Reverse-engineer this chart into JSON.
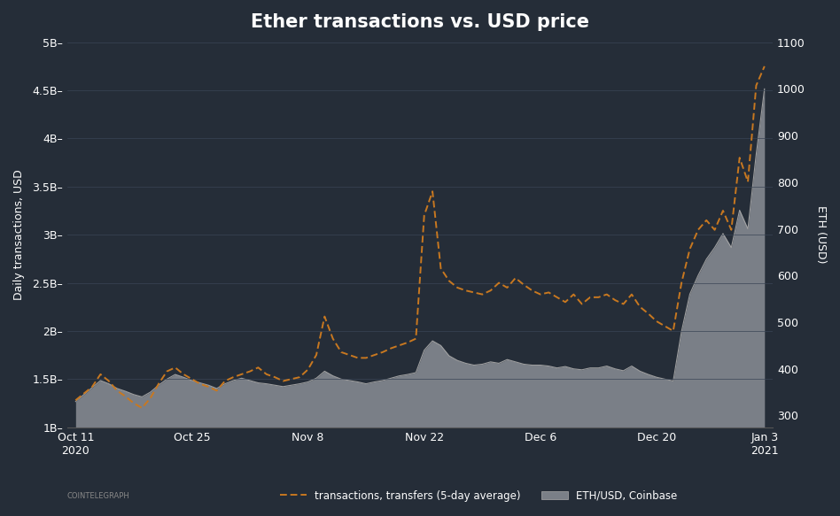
{
  "title": "Ether transactions vs. USD price",
  "bg_color": "#252d38",
  "plot_bg_color": "#252d38",
  "text_color": "#ffffff",
  "ylabel_left": "Daily transactions, USD",
  "ylabel_right": "ETH (USD)",
  "orange_color": "#c87820",
  "gray_fill_color": "#7a7f87",
  "gray_line_color": "#aaaaaa",
  "ylim_left": [
    1000000000.0,
    5000000000.0
  ],
  "ylim_right": [
    275,
    1100
  ],
  "transactions": [
    1280000000.0,
    1350000000.0,
    1420000000.0,
    1550000000.0,
    1480000000.0,
    1380000000.0,
    1320000000.0,
    1250000000.0,
    1200000000.0,
    1300000000.0,
    1450000000.0,
    1580000000.0,
    1620000000.0,
    1550000000.0,
    1500000000.0,
    1450000000.0,
    1420000000.0,
    1380000000.0,
    1480000000.0,
    1520000000.0,
    1550000000.0,
    1580000000.0,
    1620000000.0,
    1550000000.0,
    1520000000.0,
    1480000000.0,
    1500000000.0,
    1520000000.0,
    1600000000.0,
    1750000000.0,
    2150000000.0,
    1920000000.0,
    1780000000.0,
    1750000000.0,
    1720000000.0,
    1720000000.0,
    1750000000.0,
    1780000000.0,
    1820000000.0,
    1850000000.0,
    1880000000.0,
    1920000000.0,
    3200000000.0,
    3450000000.0,
    2650000000.0,
    2520000000.0,
    2450000000.0,
    2420000000.0,
    2400000000.0,
    2380000000.0,
    2420000000.0,
    2500000000.0,
    2450000000.0,
    2550000000.0,
    2480000000.0,
    2420000000.0,
    2380000000.0,
    2400000000.0,
    2350000000.0,
    2300000000.0,
    2380000000.0,
    2280000000.0,
    2350000000.0,
    2350000000.0,
    2380000000.0,
    2320000000.0,
    2280000000.0,
    2380000000.0,
    2250000000.0,
    2180000000.0,
    2100000000.0,
    2050000000.0,
    2000000000.0,
    2500000000.0,
    2850000000.0,
    3050000000.0,
    3150000000.0,
    3050000000.0,
    3250000000.0,
    3050000000.0,
    3800000000.0,
    3550000000.0,
    4550000000.0,
    4750000000.0
  ],
  "eth_price": [
    330,
    345,
    360,
    375,
    368,
    358,
    352,
    345,
    340,
    350,
    365,
    378,
    388,
    382,
    375,
    370,
    365,
    358,
    368,
    375,
    380,
    375,
    370,
    368,
    365,
    362,
    365,
    368,
    372,
    380,
    395,
    385,
    378,
    375,
    372,
    368,
    372,
    375,
    380,
    385,
    388,
    392,
    440,
    460,
    450,
    428,
    418,
    412,
    408,
    410,
    415,
    412,
    420,
    415,
    410,
    408,
    408,
    406,
    402,
    405,
    400,
    398,
    402,
    402,
    406,
    400,
    396,
    406,
    395,
    388,
    382,
    378,
    374,
    480,
    560,
    600,
    635,
    660,
    690,
    660,
    740,
    700,
    860,
    1000
  ],
  "n_points": 84,
  "legend_label_orange": "transactions, transfers (5-day average)",
  "legend_label_gray": "ETH/USD, Coinbase",
  "left_ticks": [
    1000000000,
    1500000000,
    2000000000,
    2500000000,
    3000000000,
    3500000000,
    4000000000,
    4500000000,
    5000000000
  ],
  "right_ticks": [
    300,
    400,
    500,
    600,
    700,
    800,
    900,
    1000,
    1100
  ],
  "x_tick_positions": [
    0,
    14,
    28,
    42,
    56,
    70,
    83
  ],
  "x_tick_labels": [
    "Oct 11\n2020",
    "Oct 25",
    "Nov 8",
    "Nov 22",
    "Dec 6",
    "Dec 20",
    "Jan 3\n2021"
  ]
}
